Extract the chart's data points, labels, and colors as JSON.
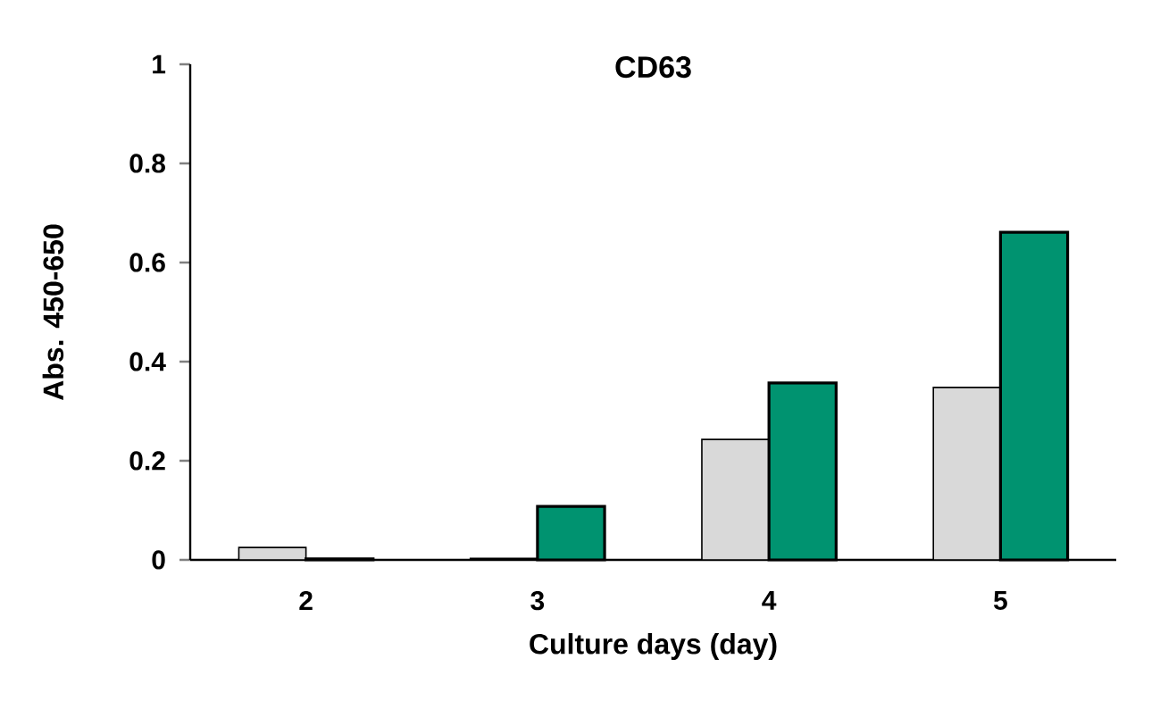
{
  "chart_data": {
    "type": "bar",
    "title": "CD63",
    "xlabel": "Culture days (day)",
    "ylabel": "Abs. 450-650",
    "categories": [
      "2",
      "3",
      "4",
      "5"
    ],
    "series": [
      {
        "color": "#d9d9d9",
        "values": [
          0.025,
          0.003,
          0.243,
          0.348
        ]
      },
      {
        "color": "#009370",
        "values": [
          0.002,
          0.108,
          0.357,
          0.661
        ]
      }
    ],
    "ylim": [
      0,
      1
    ],
    "yticks": [
      0,
      0.2,
      0.4,
      0.6,
      0.8,
      1
    ]
  }
}
